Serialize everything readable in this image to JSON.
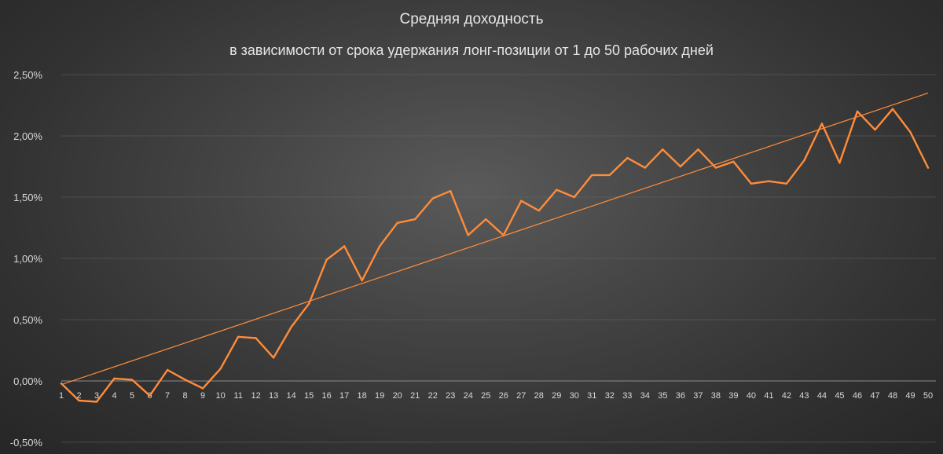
{
  "chart_data": {
    "type": "line",
    "title": "Средняя доходность",
    "subtitle": "в зависимости от срока удержания лонг-позиции от 1 до 50 рабочих дней",
    "xlabel": "",
    "ylabel": "",
    "x": [
      1,
      2,
      3,
      4,
      5,
      6,
      7,
      8,
      9,
      10,
      11,
      12,
      13,
      14,
      15,
      16,
      17,
      18,
      19,
      20,
      21,
      22,
      23,
      24,
      25,
      26,
      27,
      28,
      29,
      30,
      31,
      32,
      33,
      34,
      35,
      36,
      37,
      38,
      39,
      40,
      41,
      42,
      43,
      44,
      45,
      46,
      47,
      48,
      49,
      50
    ],
    "ylim": [
      -0.5,
      2.5
    ],
    "y_ticks": [
      2.5,
      2.0,
      1.5,
      1.0,
      0.5,
      0.0,
      -0.5
    ],
    "y_tick_labels": [
      "2,50%",
      "2,00%",
      "1,50%",
      "1,00%",
      "0,50%",
      "0,00%",
      "-0,50%"
    ],
    "grid": true,
    "legend": "none",
    "series": [
      {
        "color": "#ff8c3a",
        "values": [
          -0.02,
          -0.16,
          -0.17,
          0.02,
          0.01,
          -0.12,
          0.09,
          0.01,
          -0.06,
          0.1,
          0.36,
          0.35,
          0.19,
          0.44,
          0.63,
          0.99,
          1.1,
          0.82,
          1.1,
          1.29,
          1.32,
          1.49,
          1.55,
          1.19,
          1.32,
          1.19,
          1.47,
          1.39,
          1.56,
          1.5,
          1.68,
          1.68,
          1.82,
          1.74,
          1.89,
          1.75,
          1.89,
          1.74,
          1.79,
          1.61,
          1.63,
          1.61,
          1.8,
          2.1,
          1.78,
          2.2,
          2.05,
          2.22,
          2.03,
          1.74
        ]
      }
    ],
    "trendline": {
      "color": "#ff8c3a",
      "start": [
        1,
        -0.03
      ],
      "end": [
        50,
        2.35
      ]
    }
  }
}
